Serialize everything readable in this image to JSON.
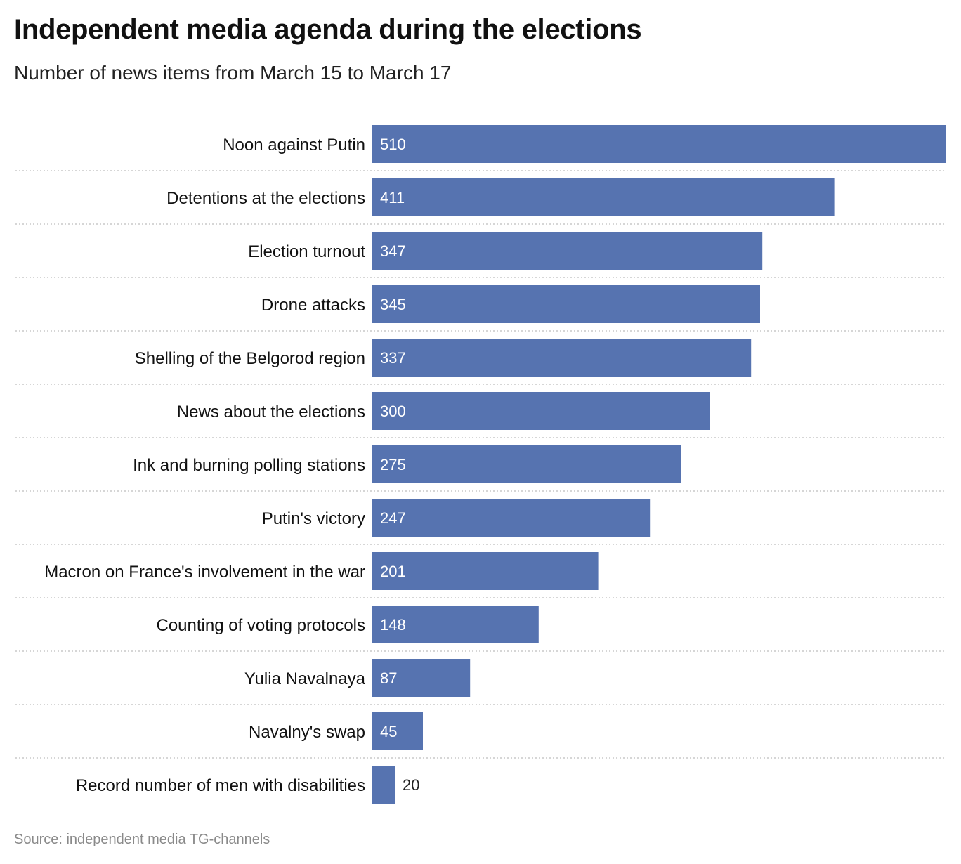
{
  "title": "Independent media agenda during the elections",
  "subtitle": "Number of news items from March 15 to March 17",
  "source": "Source: independent media TG-channels",
  "chart_data": {
    "type": "bar",
    "orientation": "horizontal",
    "categories": [
      "Noon against Putin",
      "Detentions at the elections",
      "Election turnout",
      "Drone attacks",
      "Shelling of the Belgorod region",
      "News about the elections",
      "Ink and burning polling stations",
      "Putin's victory",
      "Macron on France's involvement in the war",
      "Counting of voting protocols",
      "Yulia Navalnaya",
      "Navalny's swap",
      "Record number of men with disabilities"
    ],
    "values": [
      510,
      411,
      347,
      345,
      337,
      300,
      275,
      247,
      201,
      148,
      87,
      45,
      20
    ],
    "xlim": [
      0,
      510
    ],
    "bar_color": "#5673b0",
    "grid": false,
    "legend": false
  }
}
